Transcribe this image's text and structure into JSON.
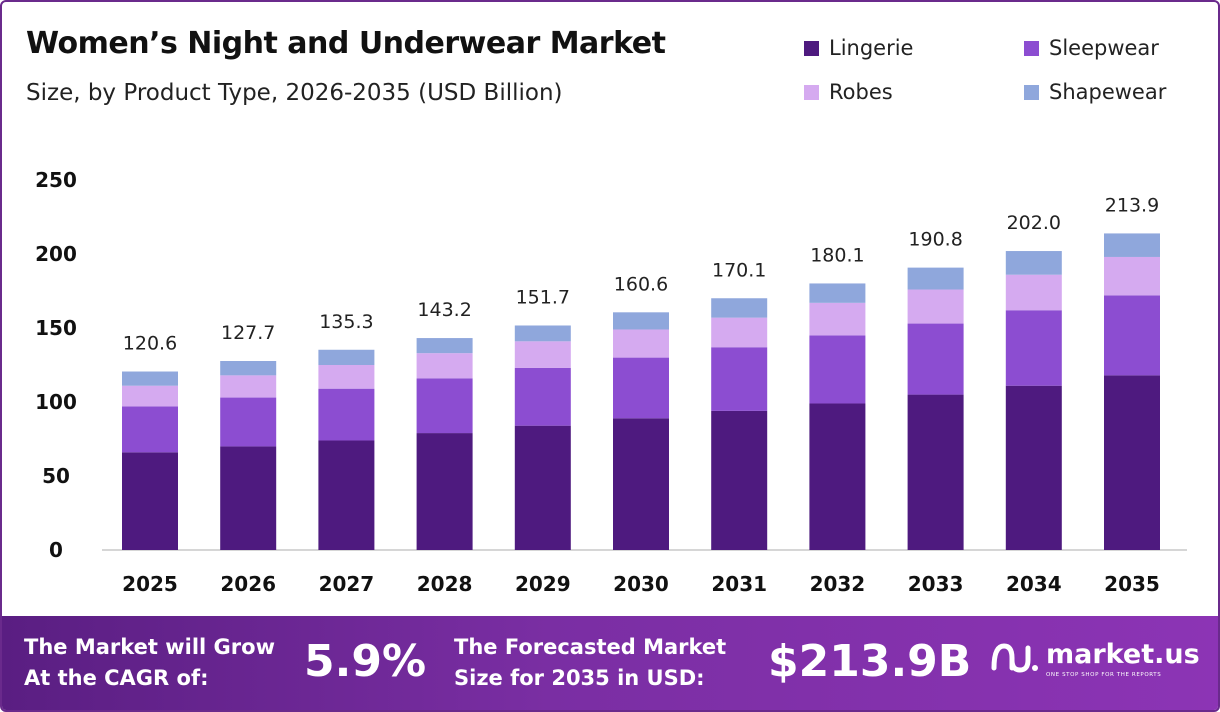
{
  "header": {
    "title": "Women’s Night and Underwear Market",
    "subtitle": "Size, by Product Type, 2026-2035 (USD Billion)"
  },
  "legend": [
    {
      "label": "Lingerie",
      "color": "#4e1a7f"
    },
    {
      "label": "Sleepwear",
      "color": "#8c4dd1"
    },
    {
      "label": "Robes",
      "color": "#d5aaf0"
    },
    {
      "label": "Shapewear",
      "color": "#8fa7dc"
    }
  ],
  "chart_data": {
    "type": "bar",
    "stacked": true,
    "categories": [
      "2025",
      "2026",
      "2027",
      "2028",
      "2029",
      "2030",
      "2031",
      "2032",
      "2033",
      "2034",
      "2035"
    ],
    "series": [
      {
        "name": "Lingerie",
        "color": "#4e1a7f",
        "values": [
          66,
          70,
          74,
          79,
          84,
          89,
          94,
          99,
          105,
          111,
          118
        ]
      },
      {
        "name": "Sleepwear",
        "color": "#8c4dd1",
        "values": [
          31,
          33,
          35,
          37,
          39,
          41,
          43,
          46,
          48,
          51,
          54
        ]
      },
      {
        "name": "Robes",
        "color": "#d5aaf0",
        "values": [
          14,
          15,
          16,
          17,
          18,
          19,
          20,
          22,
          23,
          24,
          26
        ]
      },
      {
        "name": "Shapewear",
        "color": "#8fa7dc",
        "values": [
          9.6,
          9.7,
          10.3,
          10.2,
          10.7,
          11.6,
          13.1,
          13.1,
          14.8,
          16.0,
          15.9
        ]
      }
    ],
    "totals": [
      "120.6",
      "127.7",
      "135.3",
      "143.2",
      "151.7",
      "160.6",
      "170.1",
      "180.1",
      "190.8",
      "202.0",
      "213.9"
    ],
    "y_ticks": [
      "0",
      "50",
      "100",
      "150",
      "200",
      "250"
    ],
    "ylim": [
      0,
      250
    ],
    "grid": false,
    "legend_position": "top-right"
  },
  "footer": {
    "cagr_label_line1": "The Market will Grow",
    "cagr_label_line2": "At the CAGR of:",
    "cagr_value": "5.9%",
    "forecast_label_line1": "The Forecasted Market",
    "forecast_label_line2": "Size for 2035 in USD:",
    "forecast_value": "$213.9B",
    "brand_name": "market.us",
    "brand_tagline": "ONE STOP SHOP FOR THE REPORTS"
  }
}
